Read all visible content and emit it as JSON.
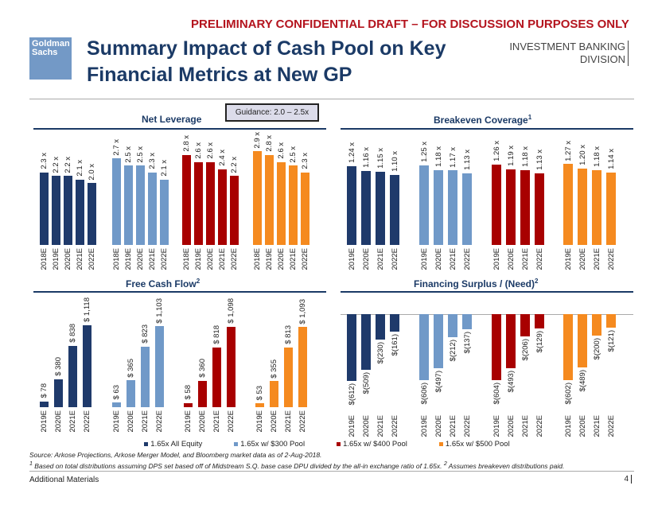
{
  "header": {
    "draft_notice": "PRELIMINARY CONFIDENTIAL DRAFT – FOR DISCUSSION PURPOSES ONLY",
    "logo": "Goldman Sachs",
    "title": "Summary Impact of Cash Pool on Key Financial Metrics at New GP",
    "division_line1": "INVESTMENT BANKING",
    "division_line2": "DIVISION"
  },
  "guidance": "Guidance: 2.0 – 2.5x",
  "colors": {
    "All Equity": "#1f3a6b",
    "$300 Pool": "#7099c8",
    "$400 Pool": "#a80000",
    "$500 Pool": "#f58a1f"
  },
  "legend": [
    "1.65x All Equity",
    "1.65x w/ $300 Pool",
    "1.65x w/ $400 Pool",
    "1.65x w/ $500 Pool"
  ],
  "chart_data": [
    {
      "type": "bar",
      "title": "Net Leverage",
      "title_sup": "",
      "ylim": [
        0.25,
        3.0
      ],
      "categories": [
        "2018E",
        "2019E",
        "2020E",
        "2021E",
        "2022E"
      ],
      "series": [
        {
          "name": "1.65x All Equity",
          "values": [
            2.3,
            2.2,
            2.2,
            2.1,
            2.0
          ],
          "labels": [
            "2.3 x",
            "2.2 x",
            "2.2 x",
            "2.1 x",
            "2.0 x"
          ]
        },
        {
          "name": "1.65x w/ $300 Pool",
          "values": [
            2.7,
            2.5,
            2.5,
            2.3,
            2.1
          ],
          "labels": [
            "2.7 x",
            "2.5 x",
            "2.5 x",
            "2.3 x",
            "2.1 x"
          ]
        },
        {
          "name": "1.65x w/ $400 Pool",
          "values": [
            2.8,
            2.6,
            2.6,
            2.4,
            2.2
          ],
          "labels": [
            "2.8 x",
            "2.6 x",
            "2.6 x",
            "2.4 x",
            "2.2 x"
          ]
        },
        {
          "name": "1.65x w/ $500 Pool",
          "values": [
            2.9,
            2.8,
            2.6,
            2.5,
            2.3
          ],
          "labels": [
            "2.9 x",
            "2.8 x",
            "2.6 x",
            "2.5 x",
            "2.3 x"
          ]
        }
      ]
    },
    {
      "type": "bar",
      "title": "Breakeven Coverage",
      "title_sup": "1",
      "ylim": [
        0,
        1.3
      ],
      "categories": [
        "2019E",
        "2020E",
        "2021E",
        "2022E"
      ],
      "series": [
        {
          "name": "1.65x All Equity",
          "values": [
            1.24,
            1.16,
            1.15,
            1.1
          ],
          "labels": [
            "1.24 x",
            "1.16 x",
            "1.15 x",
            "1.10 x"
          ]
        },
        {
          "name": "1.65x w/ $300 Pool",
          "values": [
            1.25,
            1.18,
            1.17,
            1.13
          ],
          "labels": [
            "1.25 x",
            "1.18 x",
            "1.17 x",
            "1.13 x"
          ]
        },
        {
          "name": "1.65x w/ $400 Pool",
          "values": [
            1.26,
            1.19,
            1.18,
            1.13
          ],
          "labels": [
            "1.26 x",
            "1.19 x",
            "1.18 x",
            "1.13 x"
          ]
        },
        {
          "name": "1.65x w/ $500 Pool",
          "values": [
            1.27,
            1.2,
            1.18,
            1.14
          ],
          "labels": [
            "1.27 x",
            "1.20 x",
            "1.18 x",
            "1.14 x"
          ]
        }
      ]
    },
    {
      "type": "bar",
      "title": "Free Cash Flow",
      "title_sup": "2",
      "ylim": [
        0,
        1130
      ],
      "categories": [
        "2019E",
        "2020E",
        "2021E",
        "2022E"
      ],
      "series": [
        {
          "name": "1.65x All Equity",
          "values": [
            78,
            380,
            838,
            1118
          ],
          "labels": [
            "$ 78",
            "$ 380",
            "$ 838",
            "$ 1,118"
          ]
        },
        {
          "name": "1.65x w/ $300 Pool",
          "values": [
            63,
            365,
            823,
            1103
          ],
          "labels": [
            "$ 63",
            "$ 365",
            "$ 823",
            "$ 1,103"
          ]
        },
        {
          "name": "1.65x w/ $400 Pool",
          "values": [
            58,
            360,
            818,
            1098
          ],
          "labels": [
            "$ 58",
            "$ 360",
            "$ 818",
            "$ 1,098"
          ]
        },
        {
          "name": "1.65x w/ $500 Pool",
          "values": [
            53,
            355,
            813,
            1093
          ],
          "labels": [
            "$ 53",
            "$ 355",
            "$ 813",
            "$ 1,093"
          ]
        }
      ]
    },
    {
      "type": "bar",
      "title": "Financing Surplus / (Need)",
      "title_sup": "2",
      "ylim": [
        -620,
        0
      ],
      "categories": [
        "2019E",
        "2020E",
        "2021E",
        "2022E"
      ],
      "series": [
        {
          "name": "1.65x All Equity",
          "values": [
            -612,
            -509,
            -230,
            -161
          ],
          "labels": [
            "$(612)",
            "$(509)",
            "$(230)",
            "$(161)"
          ]
        },
        {
          "name": "1.65x w/ $300 Pool",
          "values": [
            -606,
            -497,
            -212,
            -137
          ],
          "labels": [
            "$(606)",
            "$(497)",
            "$(212)",
            "$(137)"
          ]
        },
        {
          "name": "1.65x w/ $400 Pool",
          "values": [
            -604,
            -493,
            -206,
            -129
          ],
          "labels": [
            "$(604)",
            "$(493)",
            "$(206)",
            "$(129)"
          ]
        },
        {
          "name": "1.65x w/ $500 Pool",
          "values": [
            -602,
            -489,
            -200,
            -121
          ],
          "labels": [
            "$(602)",
            "$(489)",
            "$(200)",
            "$(121)"
          ]
        }
      ]
    }
  ],
  "footer": {
    "source": "Source: Arkose Projections, Arkose Merger Model, and Bloomberg market data as of 2-Aug-2018.",
    "note_1_mark": "1",
    "note_1": " Based on total distributions assuming DPS set based off of Midstream S.Q. base case DPU divided by the all-in exchange ratio of 1.65x. ",
    "note_2_mark": "2",
    "note_2": " Assumes breakeven distributions paid.",
    "section": "Additional Materials",
    "page": "4"
  }
}
